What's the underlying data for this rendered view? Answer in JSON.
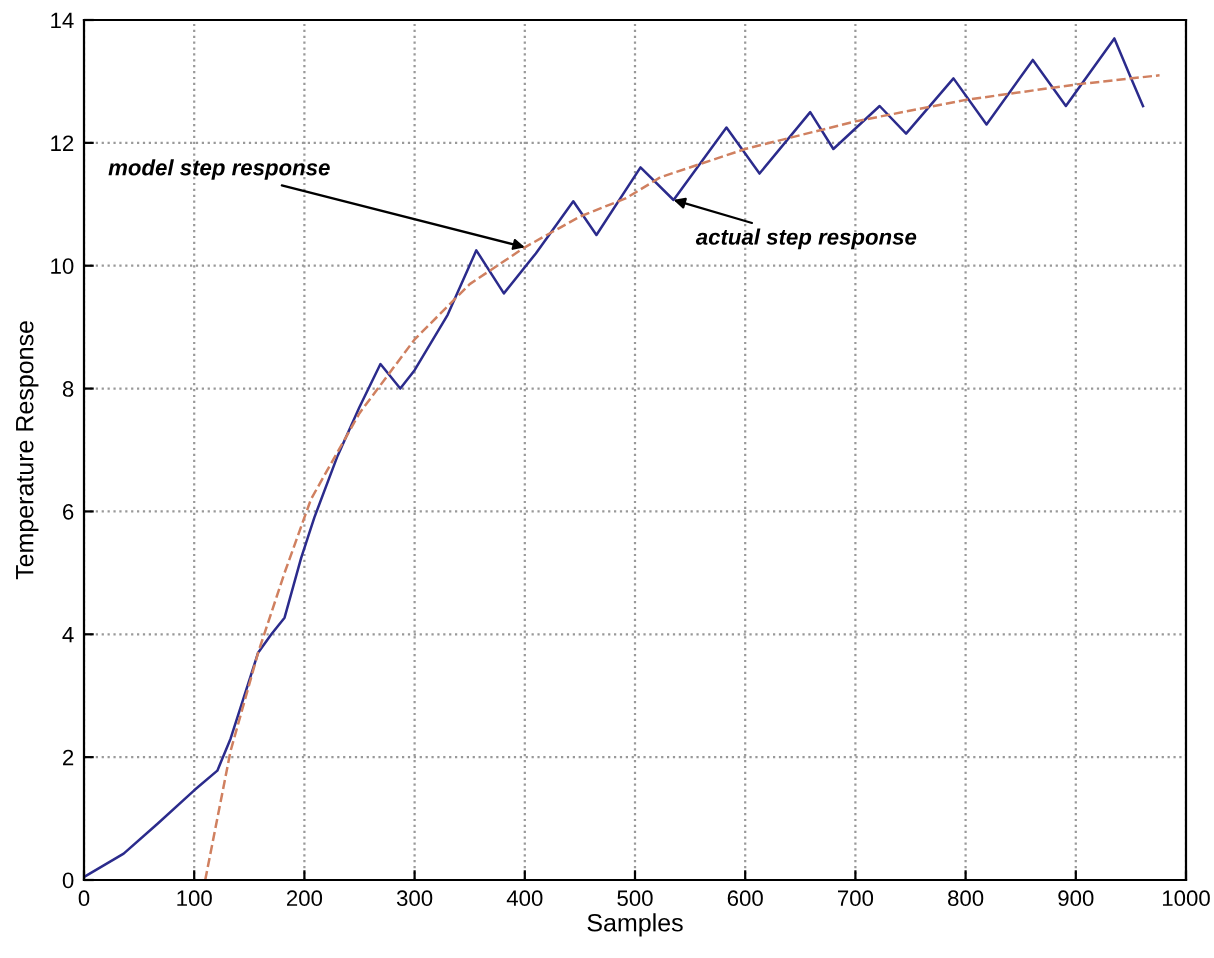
{
  "chart_data": {
    "type": "line",
    "xlabel": "Samples",
    "ylabel": "Temperature Response",
    "xlim": [
      0,
      1000
    ],
    "ylim": [
      0,
      14
    ],
    "xticks": [
      0,
      100,
      200,
      300,
      400,
      500,
      600,
      700,
      800,
      900,
      1000
    ],
    "yticks": [
      0,
      2,
      4,
      6,
      8,
      10,
      12,
      14
    ],
    "grid": true,
    "series": [
      {
        "color": "#2b2b8c",
        "line_style": "solid",
        "x": [
          0,
          36,
          67,
          100,
          121,
          133,
          158,
          170,
          182,
          197,
          203,
          209,
          230,
          250,
          269,
          287,
          300,
          330,
          356,
          381,
          410,
          444,
          465,
          505,
          535,
          583,
          613,
          659,
          680,
          722,
          746,
          789,
          819,
          861,
          891,
          935,
          949,
          961
        ],
        "values": [
          0.05,
          0.43,
          0.92,
          1.46,
          1.78,
          2.3,
          3.7,
          4.0,
          4.27,
          5.24,
          5.57,
          5.9,
          6.9,
          7.7,
          8.4,
          8.0,
          8.3,
          9.2,
          10.25,
          9.55,
          10.2,
          11.05,
          10.5,
          11.6,
          11.07,
          12.25,
          11.5,
          12.5,
          11.9,
          12.6,
          12.15,
          13.05,
          12.3,
          13.35,
          12.6,
          13.7,
          13.1,
          12.6
        ]
      },
      {
        "color": "#d08060",
        "line_style": "dashed",
        "x": [
          110,
          133,
          158,
          182,
          206,
          250,
          300,
          350,
          400,
          450,
          492,
          523,
          600,
          700,
          800,
          900,
          976
        ],
        "values": [
          0,
          2.1,
          3.7,
          5.0,
          6.2,
          7.6,
          8.8,
          9.7,
          10.3,
          10.8,
          11.1,
          11.44,
          11.9,
          12.35,
          12.7,
          12.95,
          13.1
        ]
      }
    ],
    "annotations": [
      {
        "text": "model step response",
        "x": 400,
        "y": 10.3
      },
      {
        "text": "actual step response",
        "x": 535,
        "y": 11.07
      }
    ]
  }
}
